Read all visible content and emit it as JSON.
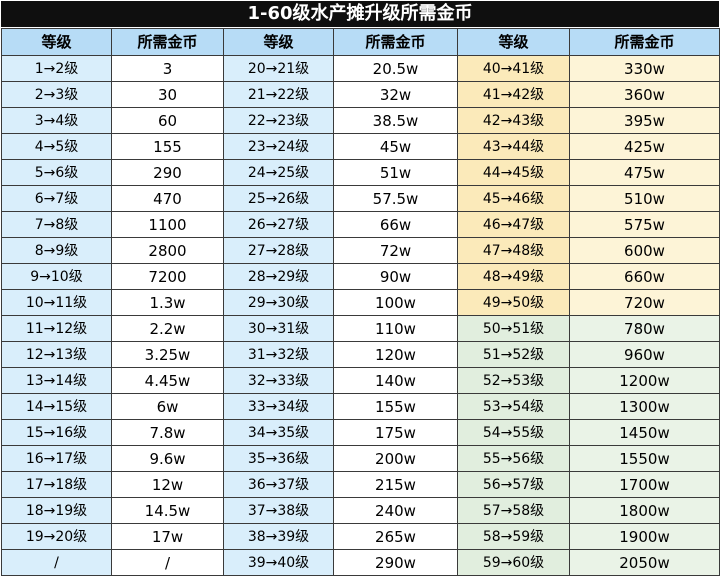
{
  "title": "1-60级水产摊升级所需金币",
  "headers": [
    "等级",
    "所需金币",
    "等级",
    "所需金币",
    "等级",
    "所需金币"
  ],
  "rows": [
    [
      "1→2级",
      "3",
      "20→21级",
      "20.5w",
      "40→41级",
      "330w"
    ],
    [
      "2→3级",
      "30",
      "21→22级",
      "32w",
      "41→42级",
      "360w"
    ],
    [
      "3→4级",
      "60",
      "22→23级",
      "38.5w",
      "42→43级",
      "395w"
    ],
    [
      "4→5级",
      "155",
      "23→24级",
      "45w",
      "43→44级",
      "425w"
    ],
    [
      "5→6级",
      "290",
      "24→25级",
      "51w",
      "44→45级",
      "475w"
    ],
    [
      "6→7级",
      "470",
      "25→26级",
      "57.5w",
      "45→46级",
      "510w"
    ],
    [
      "7→8级",
      "1100",
      "26→27级",
      "66w",
      "46→47级",
      "575w"
    ],
    [
      "8→9级",
      "2800",
      "27→28级",
      "72w",
      "47→48级",
      "600w"
    ],
    [
      "9→10级",
      "7200",
      "28→29级",
      "90w",
      "48→49级",
      "660w"
    ],
    [
      "10→11级",
      "1.3w",
      "29→30级",
      "100w",
      "49→50级",
      "720w"
    ],
    [
      "11→12级",
      "2.2w",
      "30→31级",
      "110w",
      "50→51级",
      "780w"
    ],
    [
      "12→13级",
      "3.25w",
      "31→32级",
      "120w",
      "51→52级",
      "960w"
    ],
    [
      "13→14级",
      "4.45w",
      "32→33级",
      "140w",
      "52→53级",
      "1200w"
    ],
    [
      "14→15级",
      "6w",
      "33→34级",
      "155w",
      "53→54级",
      "1300w"
    ],
    [
      "15→16级",
      "7.8w",
      "34→35级",
      "175w",
      "54→55级",
      "1450w"
    ],
    [
      "16→17级",
      "9.6w",
      "35→36级",
      "200w",
      "55→56级",
      "1550w"
    ],
    [
      "17→18级",
      "12w",
      "36→37级",
      "215w",
      "56→57级",
      "1700w"
    ],
    [
      "18→19级",
      "14.5w",
      "37→38级",
      "240w",
      "57→58级",
      "1800w"
    ],
    [
      "19→20级",
      "17w",
      "38→39级",
      "265w",
      "58→59级",
      "1900w"
    ],
    [
      "/",
      "/",
      "39→40级",
      "290w",
      "59→60级",
      "2050w"
    ]
  ],
  "colors": {
    "title_bg": "#0f0f0f",
    "header_bg": "#b7dcf6",
    "level_col_bg": "#d9eefb",
    "yellow_level_bg": "#fbeaba",
    "yellow_value_bg": "#fdf4d7",
    "green_level_bg": "#e1eede",
    "green_value_bg": "#eaf3e7"
  }
}
